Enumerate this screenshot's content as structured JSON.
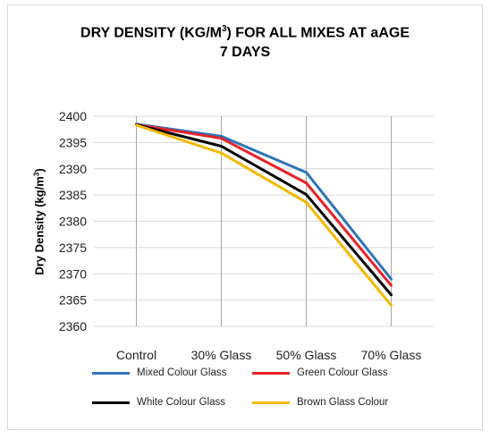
{
  "chart_data": {
    "type": "line",
    "title_line1": "DRY DENSITY (KG/M",
    "title_sup": "3",
    "title_line1_tail": ") FOR ALL MIXES AT aAGE",
    "title_line2": "7 DAYS",
    "xlabel": "",
    "ylabel": "Dry Density (kg/m",
    "ylabel_sup": "3",
    "ylabel_tail": ")",
    "categories": [
      "Control",
      "30% Glass",
      "50% Glass",
      "70% Glass"
    ],
    "ylim": [
      2360,
      2400
    ],
    "yticks": [
      "2400",
      "2395",
      "2390",
      "2385",
      "2380",
      "2375",
      "2370",
      "2365",
      "2360"
    ],
    "grid": true,
    "legend_position": "bottom",
    "series": [
      {
        "name": "Mixed Colour Glass",
        "color": "#2e75b6",
        "values": [
          2398.5,
          2396.2,
          2389.3,
          2369.0
        ]
      },
      {
        "name": "Green Colour Glass",
        "color": "#e8232a",
        "values": [
          2398.4,
          2395.8,
          2387.3,
          2367.8
        ]
      },
      {
        "name": "White Colour Glass",
        "color": "#000000",
        "values": [
          2398.4,
          2394.3,
          2385.1,
          2366.0
        ]
      },
      {
        "name": "Brown Glass Colour",
        "color": "#f5b800",
        "values": [
          2398.3,
          2393.0,
          2383.6,
          2364.0
        ]
      }
    ]
  }
}
